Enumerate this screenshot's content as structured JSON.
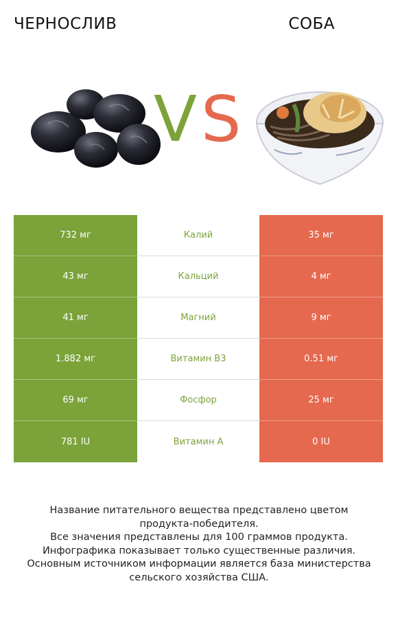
{
  "header": {
    "left_title": "ЧЕРНОСЛИВ",
    "right_title": "СОБА",
    "vs_v": "V",
    "vs_s": "S"
  },
  "colors": {
    "winner_left": "#7ba33a",
    "winner_right": "#e5694e"
  },
  "icons": {
    "left_image": "prunes-image",
    "right_image": "soba-noodle-bowl-image"
  },
  "rows": [
    {
      "left": "732 мг",
      "nutrient": "Калий",
      "right": "35 мг"
    },
    {
      "left": "43 мг",
      "nutrient": "Кальций",
      "right": "4 мг"
    },
    {
      "left": "41 мг",
      "nutrient": "Магний",
      "right": "9 мг"
    },
    {
      "left": "1.882 мг",
      "nutrient": "Витамин B3",
      "right": "0.51 мг"
    },
    {
      "left": "69 мг",
      "nutrient": "Фосфор",
      "right": "25 мг"
    },
    {
      "left": "781 IU",
      "nutrient": "Витамин A",
      "right": "0 IU"
    }
  ],
  "notes": [
    "Название питательного вещества представлено цветом",
    "продукта-победителя.",
    "Все значения представлены для 100 граммов продукта.",
    "Инфографика показывает только существенные различия.",
    "Основным источником информации является база министерства",
    "сельского хозяйства США."
  ]
}
